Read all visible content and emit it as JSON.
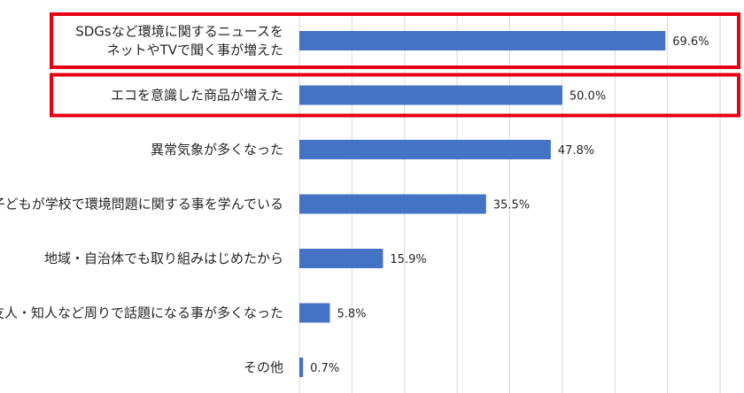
{
  "chart_data": {
    "type": "bar",
    "orientation": "horizontal",
    "categories": [
      [
        "SDGsなど環境に関するニュースを",
        "ネットやTVで聞く事が増えた"
      ],
      [
        "エコを意識した商品が増えた"
      ],
      [
        "異常気象が多くなった"
      ],
      [
        "子どもが学校で環境問題に関する事を学んでいる"
      ],
      [
        "地域・自治体でも取り組みはじめたから"
      ],
      [
        "友人・知人など周りで話題になる事が多くなった"
      ],
      [
        "その他"
      ]
    ],
    "values": [
      69.6,
      50.0,
      47.8,
      35.5,
      15.9,
      5.8,
      0.7
    ],
    "value_labels": [
      "69.6%",
      "50.0%",
      "47.8%",
      "35.5%",
      "15.9%",
      "5.8%",
      "0.7%"
    ],
    "highlighted": [
      0,
      1
    ],
    "xlim": [
      0,
      80
    ],
    "grid": "vertical",
    "colors": {
      "bar": "#4472c4",
      "highlight": "#e60012",
      "grid": "#d9d9d9",
      "text": "#262626"
    }
  }
}
